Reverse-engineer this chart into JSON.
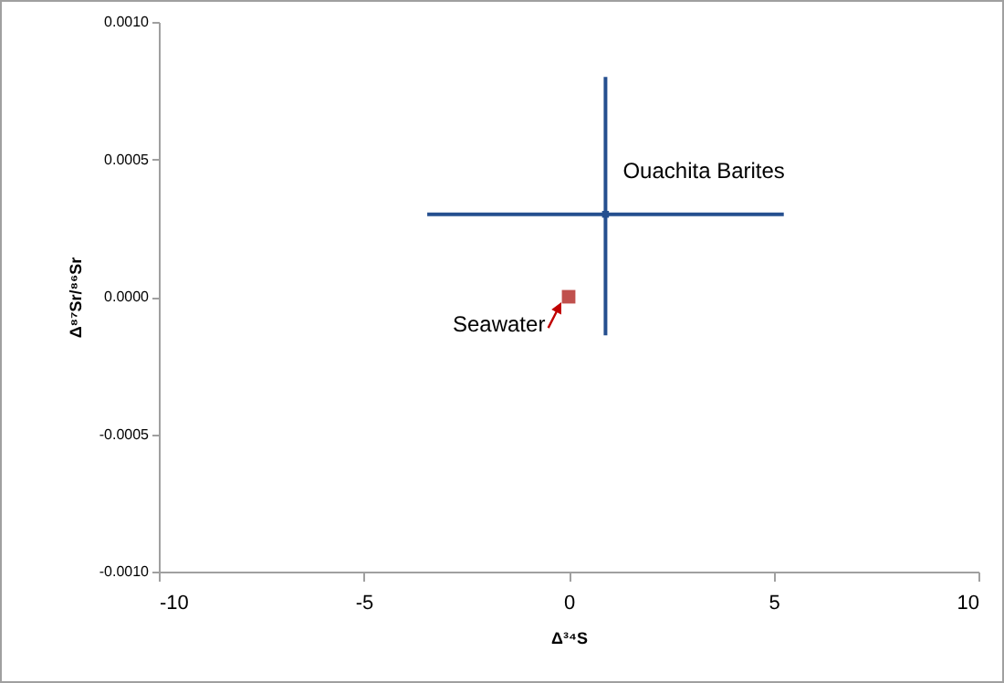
{
  "chart_data": {
    "type": "scatter",
    "xlabel": "Δ³⁴S",
    "ylabel": "Δ⁸⁷Sr/⁸⁶Sr",
    "xlim": [
      -10,
      10
    ],
    "xticks": [
      -10,
      -5,
      0,
      5,
      10
    ],
    "ylim": [
      -0.001,
      0.001
    ],
    "yticks": [
      {
        "value": -0.001,
        "label": "-0.0010"
      },
      {
        "value": -0.0005,
        "label": "-0.0005"
      },
      {
        "value": 0,
        "label": "0.0000"
      },
      {
        "value": 0.0005,
        "label": "0.0005"
      },
      {
        "value": 0.001,
        "label": "0.0010"
      }
    ],
    "grid": false,
    "series": [
      {
        "name": "Ouachita Barites",
        "color": "#254f8f",
        "x": [
          0.9
        ],
        "values": [
          0.0003
        ],
        "xerrors": [
          [
            -3.45,
            5.25
          ]
        ],
        "errors": [
          [
            -0.00014,
            0.0008
          ]
        ]
      },
      {
        "name": "Seawater",
        "color": "#c0504d",
        "marker": "square",
        "x": [
          0
        ],
        "values": [
          0
        ]
      }
    ]
  }
}
